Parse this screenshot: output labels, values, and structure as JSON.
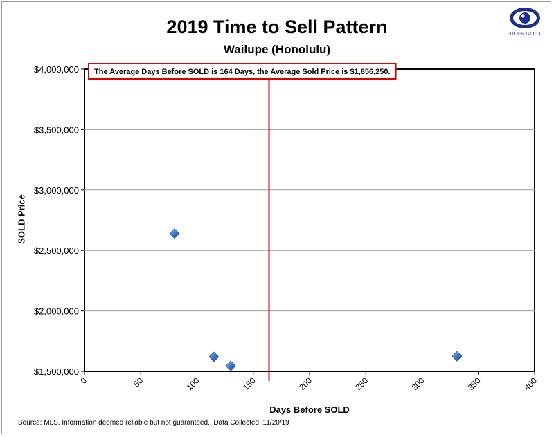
{
  "chart_data": {
    "type": "scatter",
    "title": "2019 Time to Sell Pattern",
    "subtitle": "Wailupe  (Honolulu)",
    "xlabel": "Days Before SOLD",
    "ylabel": "SOLD Price",
    "xlim": [
      0,
      400
    ],
    "ylim": [
      1500000,
      4000000
    ],
    "x_ticks": [
      0,
      50,
      100,
      150,
      200,
      250,
      300,
      350,
      400
    ],
    "y_ticks": [
      1500000,
      2000000,
      2500000,
      3000000,
      3500000,
      4000000
    ],
    "y_tick_labels": [
      "$1,500,000",
      "$2,000,000",
      "$2,500,000",
      "$3,000,000",
      "$3,500,000",
      "$4,000,000"
    ],
    "grid": "horizontal",
    "points": [
      {
        "x": 80,
        "y": 2640000
      },
      {
        "x": 115,
        "y": 1620000
      },
      {
        "x": 130,
        "y": 1545000
      },
      {
        "x": 331,
        "y": 1625000
      }
    ],
    "average_days": 164,
    "annotation": "The Average Days Before SOLD is 164 Days, the Average Sold Price is $1,856,250.",
    "marker_color": "#3d78c4",
    "average_line_color": "#e00000",
    "annotation_border_color": "#e00000"
  },
  "logo": {
    "text": "FOCUS 1st LLC"
  },
  "source": "Source: MLS, Information deemed reliable but not guaranteed., Data Collected: 11/20/19"
}
